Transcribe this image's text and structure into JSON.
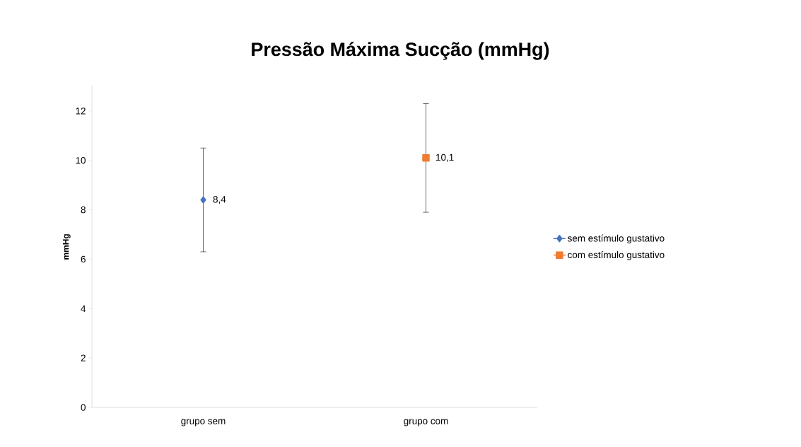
{
  "chart_data": {
    "type": "line",
    "title": "Pressão Máxima Sucção (mmHg)",
    "ylabel": "mmHg",
    "categories": [
      "grupo sem",
      "grupo com"
    ],
    "series": [
      {
        "name": "sem estímulo gustativo",
        "color": "#4472c4",
        "marker": "diamond",
        "values": [
          8.4,
          null
        ],
        "errors": [
          2.1,
          null
        ],
        "value_labels": [
          "8,4",
          null
        ]
      },
      {
        "name": "com estímulo gustativo",
        "color": "#ed7d31",
        "marker": "square",
        "values": [
          null,
          10.1
        ],
        "errors": [
          null,
          2.2
        ],
        "value_labels": [
          null,
          "10,1"
        ]
      }
    ],
    "ylim": [
      0,
      13
    ],
    "yticks": [
      0,
      2,
      4,
      6,
      8,
      10,
      12
    ],
    "legend": "right",
    "grid": false
  }
}
